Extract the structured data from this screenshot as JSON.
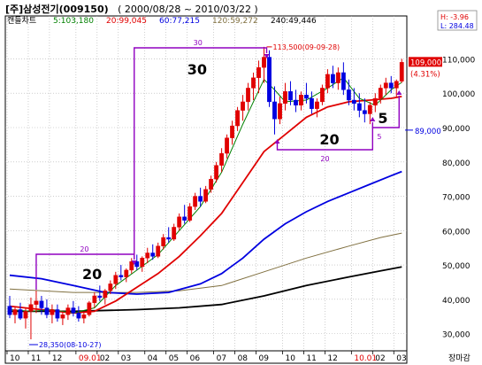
{
  "header": {
    "title": "[주]삼성전기(009150)",
    "period": "( 2000/08/28 ~ 2010/03/22 )"
  },
  "legend": [
    {
      "label": "캔들차트",
      "color": "#000000"
    },
    {
      "label": "5:103,180",
      "color": "#008000"
    },
    {
      "label": "20:99,045",
      "color": "#e00000"
    },
    {
      "label": "60:77,215",
      "color": "#0000e0"
    },
    {
      "label": "120:59,272",
      "color": "#807040"
    },
    {
      "label": "240:49,446",
      "color": "#000000"
    }
  ],
  "hl_box": {
    "high": "H: -3.96",
    "low": "L: 284.48"
  },
  "price_labels": {
    "current": "109,000",
    "change": "(4.31%)",
    "marker": "89,000"
  },
  "annotations": {
    "max_note": "113,500(09-09-28)",
    "min_note": "28,350(08-10-27)",
    "period_a_small": "20",
    "period_a_big": "20",
    "period_b_small": "30",
    "period_b_big": "30",
    "period_c_small": "20",
    "period_c_big": "20",
    "period_d_small": "5",
    "period_d_big": "5"
  },
  "footer": {
    "status": "장마감"
  },
  "colors": {
    "up": "#e00000",
    "down": "#0000e0",
    "annot": "#9000c0",
    "grid": "#b0b0b0"
  },
  "chart_data": {
    "type": "candlestick",
    "title": "[주]삼성전기(009150)",
    "ylim": [
      25000,
      122500
    ],
    "y_ticks": [
      30000,
      40000,
      50000,
      60000,
      70000,
      80000,
      90000,
      100000,
      110000
    ],
    "y_tick_labels": [
      "30,000",
      "40,000",
      "50,000",
      "60,000",
      "70,000",
      "80,000",
      "90,000",
      "100,000",
      "110,000"
    ],
    "month_labels": [
      {
        "label": "10",
        "idx": 0,
        "red": false
      },
      {
        "label": "11",
        "idx": 4,
        "red": false
      },
      {
        "label": "12",
        "idx": 8,
        "red": false
      },
      {
        "label": "09.01",
        "idx": 13,
        "red": true
      },
      {
        "label": "02",
        "idx": 17,
        "red": false
      },
      {
        "label": "03",
        "idx": 21,
        "red": false
      },
      {
        "label": "04",
        "idx": 26,
        "red": false
      },
      {
        "label": "05",
        "idx": 30,
        "red": false
      },
      {
        "label": "06",
        "idx": 34,
        "red": false
      },
      {
        "label": "07",
        "idx": 39,
        "red": false
      },
      {
        "label": "08",
        "idx": 43,
        "red": false
      },
      {
        "label": "09",
        "idx": 47,
        "red": false
      },
      {
        "label": "10",
        "idx": 52,
        "red": false
      },
      {
        "label": "11",
        "idx": 56,
        "red": false
      },
      {
        "label": "12",
        "idx": 60,
        "red": false
      },
      {
        "label": "10.01",
        "idx": 65,
        "red": true
      },
      {
        "label": "02",
        "idx": 69,
        "red": false
      },
      {
        "label": "03",
        "idx": 73,
        "red": false
      }
    ],
    "candles": [
      {
        "o": 38000,
        "h": 41000,
        "l": 34500,
        "c": 35500
      },
      {
        "o": 35500,
        "h": 38000,
        "l": 33000,
        "c": 37000
      },
      {
        "o": 37000,
        "h": 39000,
        "l": 34000,
        "c": 34500
      },
      {
        "o": 34500,
        "h": 37500,
        "l": 31500,
        "c": 36500
      },
      {
        "o": 36500,
        "h": 40500,
        "l": 28350,
        "c": 38500
      },
      {
        "o": 38500,
        "h": 42500,
        "l": 36000,
        "c": 39500
      },
      {
        "o": 39500,
        "h": 41000,
        "l": 35500,
        "c": 37500
      },
      {
        "o": 37500,
        "h": 40000,
        "l": 34500,
        "c": 35500
      },
      {
        "o": 35500,
        "h": 38500,
        "l": 33000,
        "c": 37000
      },
      {
        "o": 37000,
        "h": 38500,
        "l": 33500,
        "c": 34500
      },
      {
        "o": 34500,
        "h": 36500,
        "l": 32500,
        "c": 35500
      },
      {
        "o": 35500,
        "h": 38500,
        "l": 34000,
        "c": 37500
      },
      {
        "o": 37500,
        "h": 39500,
        "l": 35000,
        "c": 36000
      },
      {
        "o": 36000,
        "h": 38000,
        "l": 33500,
        "c": 34500
      },
      {
        "o": 34500,
        "h": 36500,
        "l": 33000,
        "c": 35500
      },
      {
        "o": 35500,
        "h": 39500,
        "l": 35000,
        "c": 39000
      },
      {
        "o": 39000,
        "h": 42000,
        "l": 37500,
        "c": 41000
      },
      {
        "o": 41000,
        "h": 44000,
        "l": 39500,
        "c": 40500
      },
      {
        "o": 40500,
        "h": 43000,
        "l": 38500,
        "c": 42500
      },
      {
        "o": 42500,
        "h": 45500,
        "l": 41500,
        "c": 44500
      },
      {
        "o": 44500,
        "h": 48000,
        "l": 43000,
        "c": 47000
      },
      {
        "o": 47000,
        "h": 50000,
        "l": 45500,
        "c": 46500
      },
      {
        "o": 46500,
        "h": 49000,
        "l": 45000,
        "c": 48500
      },
      {
        "o": 48500,
        "h": 52000,
        "l": 47500,
        "c": 51000
      },
      {
        "o": 51000,
        "h": 53000,
        "l": 48500,
        "c": 49500
      },
      {
        "o": 49500,
        "h": 52500,
        "l": 48000,
        "c": 52000
      },
      {
        "o": 52000,
        "h": 55000,
        "l": 50500,
        "c": 53500
      },
      {
        "o": 53500,
        "h": 56000,
        "l": 51500,
        "c": 52500
      },
      {
        "o": 52500,
        "h": 56500,
        "l": 52000,
        "c": 55500
      },
      {
        "o": 55500,
        "h": 59000,
        "l": 54500,
        "c": 58000
      },
      {
        "o": 58000,
        "h": 61000,
        "l": 56500,
        "c": 57500
      },
      {
        "o": 57500,
        "h": 62000,
        "l": 57000,
        "c": 61000
      },
      {
        "o": 61000,
        "h": 65000,
        "l": 60000,
        "c": 64000
      },
      {
        "o": 64000,
        "h": 67500,
        "l": 62000,
        "c": 63000
      },
      {
        "o": 63000,
        "h": 68000,
        "l": 62500,
        "c": 67000
      },
      {
        "o": 67000,
        "h": 71000,
        "l": 66000,
        "c": 70000
      },
      {
        "o": 70000,
        "h": 72500,
        "l": 67000,
        "c": 68500
      },
      {
        "o": 68500,
        "h": 73000,
        "l": 68000,
        "c": 72000
      },
      {
        "o": 72000,
        "h": 76000,
        "l": 71000,
        "c": 75000
      },
      {
        "o": 75000,
        "h": 80000,
        "l": 74000,
        "c": 79000
      },
      {
        "o": 79000,
        "h": 84000,
        "l": 77000,
        "c": 82500
      },
      {
        "o": 82500,
        "h": 88000,
        "l": 81000,
        "c": 87000
      },
      {
        "o": 87000,
        "h": 92000,
        "l": 85000,
        "c": 90500
      },
      {
        "o": 90500,
        "h": 96000,
        "l": 89000,
        "c": 95000
      },
      {
        "o": 95000,
        "h": 99500,
        "l": 92000,
        "c": 97500
      },
      {
        "o": 97500,
        "h": 103000,
        "l": 95000,
        "c": 101500
      },
      {
        "o": 101500,
        "h": 106000,
        "l": 98000,
        "c": 104500
      },
      {
        "o": 104500,
        "h": 109500,
        "l": 100000,
        "c": 107500
      },
      {
        "o": 107500,
        "h": 113500,
        "l": 103000,
        "c": 110500
      },
      {
        "o": 110500,
        "h": 112500,
        "l": 96000,
        "c": 97500
      },
      {
        "o": 97500,
        "h": 102000,
        "l": 88000,
        "c": 92500
      },
      {
        "o": 92500,
        "h": 99000,
        "l": 91000,
        "c": 97000
      },
      {
        "o": 97000,
        "h": 103000,
        "l": 95000,
        "c": 100500
      },
      {
        "o": 100500,
        "h": 103500,
        "l": 96500,
        "c": 98000
      },
      {
        "o": 98000,
        "h": 101000,
        "l": 94500,
        "c": 96500
      },
      {
        "o": 96500,
        "h": 100500,
        "l": 95000,
        "c": 99500
      },
      {
        "o": 99500,
        "h": 103000,
        "l": 97000,
        "c": 98500
      },
      {
        "o": 98500,
        "h": 100500,
        "l": 94000,
        "c": 95500
      },
      {
        "o": 95500,
        "h": 98500,
        "l": 93000,
        "c": 97500
      },
      {
        "o": 97500,
        "h": 102500,
        "l": 96500,
        "c": 101500
      },
      {
        "o": 101500,
        "h": 107000,
        "l": 100000,
        "c": 105500
      },
      {
        "o": 105500,
        "h": 108000,
        "l": 101500,
        "c": 103000
      },
      {
        "o": 103000,
        "h": 107500,
        "l": 101000,
        "c": 106000
      },
      {
        "o": 106000,
        "h": 109000,
        "l": 99500,
        "c": 101000
      },
      {
        "o": 101000,
        "h": 104000,
        "l": 96500,
        "c": 98000
      },
      {
        "o": 98000,
        "h": 101500,
        "l": 95000,
        "c": 97000
      },
      {
        "o": 97000,
        "h": 100000,
        "l": 93000,
        "c": 95000
      },
      {
        "o": 95000,
        "h": 98500,
        "l": 91500,
        "c": 94000
      },
      {
        "o": 94000,
        "h": 97500,
        "l": 91000,
        "c": 96500
      },
      {
        "o": 96500,
        "h": 100000,
        "l": 94500,
        "c": 98500
      },
      {
        "o": 98500,
        "h": 102500,
        "l": 97000,
        "c": 101500
      },
      {
        "o": 101500,
        "h": 104500,
        "l": 99500,
        "c": 103000
      },
      {
        "o": 103000,
        "h": 105000,
        "l": 100000,
        "c": 101500
      },
      {
        "o": 101500,
        "h": 104000,
        "l": 99000,
        "c": 103500
      },
      {
        "o": 103500,
        "h": 110000,
        "l": 103000,
        "c": 109000
      }
    ],
    "ma": {
      "ma5": {
        "name": "5:103,180",
        "color": "#008000",
        "points": [
          [
            0,
            37000
          ],
          [
            4,
            36500
          ],
          [
            8,
            37000
          ],
          [
            12,
            36000
          ],
          [
            16,
            37500
          ],
          [
            20,
            44000
          ],
          [
            24,
            48500
          ],
          [
            28,
            53000
          ],
          [
            32,
            60000
          ],
          [
            36,
            67000
          ],
          [
            40,
            77000
          ],
          [
            44,
            91000
          ],
          [
            48,
            104000
          ],
          [
            50,
            101000
          ],
          [
            52,
            97500
          ],
          [
            56,
            98000
          ],
          [
            60,
            101500
          ],
          [
            63,
            104500
          ],
          [
            66,
            98500
          ],
          [
            69,
            96500
          ],
          [
            72,
            101000
          ],
          [
            74,
            103180
          ]
        ]
      },
      "ma20": {
        "name": "20:99,045",
        "color": "#e00000",
        "points": [
          [
            0,
            38000
          ],
          [
            6,
            37000
          ],
          [
            12,
            36000
          ],
          [
            16,
            36500
          ],
          [
            20,
            39500
          ],
          [
            24,
            43500
          ],
          [
            28,
            47500
          ],
          [
            32,
            52500
          ],
          [
            36,
            58500
          ],
          [
            40,
            65000
          ],
          [
            44,
            74000
          ],
          [
            48,
            83000
          ],
          [
            52,
            88000
          ],
          [
            56,
            93000
          ],
          [
            60,
            96000
          ],
          [
            64,
            97500
          ],
          [
            68,
            98000
          ],
          [
            72,
            98500
          ],
          [
            74,
            99045
          ]
        ]
      },
      "ma60": {
        "name": "60:77,215",
        "color": "#0000e0",
        "points": [
          [
            0,
            47000
          ],
          [
            6,
            46000
          ],
          [
            12,
            44000
          ],
          [
            18,
            42000
          ],
          [
            24,
            41500
          ],
          [
            30,
            42000
          ],
          [
            36,
            44500
          ],
          [
            40,
            47500
          ],
          [
            44,
            52000
          ],
          [
            48,
            57500
          ],
          [
            52,
            62000
          ],
          [
            56,
            65500
          ],
          [
            60,
            68500
          ],
          [
            64,
            71000
          ],
          [
            68,
            73500
          ],
          [
            72,
            76000
          ],
          [
            74,
            77215
          ]
        ]
      },
      "ma120": {
        "name": "120:59,272",
        "color": "#807040",
        "points": [
          [
            0,
            43000
          ],
          [
            12,
            42000
          ],
          [
            24,
            42000
          ],
          [
            32,
            42500
          ],
          [
            40,
            44000
          ],
          [
            48,
            48000
          ],
          [
            56,
            52000
          ],
          [
            64,
            55500
          ],
          [
            70,
            58000
          ],
          [
            74,
            59272
          ]
        ]
      },
      "ma240": {
        "name": "240:49,446",
        "color": "#000000",
        "points": [
          [
            0,
            36500
          ],
          [
            12,
            36500
          ],
          [
            24,
            37000
          ],
          [
            32,
            37500
          ],
          [
            40,
            38500
          ],
          [
            48,
            41000
          ],
          [
            56,
            44000
          ],
          [
            64,
            46500
          ],
          [
            70,
            48300
          ],
          [
            74,
            49446
          ]
        ]
      }
    }
  }
}
